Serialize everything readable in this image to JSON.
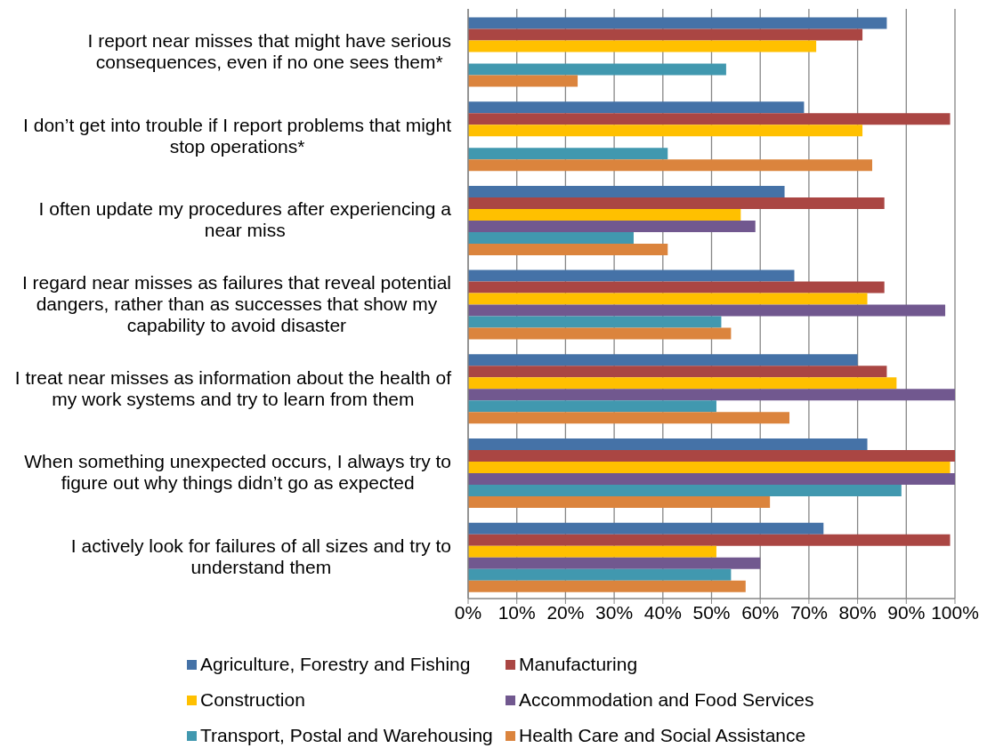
{
  "chart_data": {
    "type": "bar",
    "orientation": "horizontal",
    "categories": [
      "I report near misses that might have serious consequences, even if no one sees them*",
      "I don’t get into trouble if I report problems that might stop operations*",
      "I often update my procedures after experiencing a near miss",
      "I regard near misses as failures that reveal potential dangers, rather than as successes that show my capability to avoid disaster",
      "I treat near misses as information about the health of my work systems and try to learn from them",
      "When something unexpected occurs, I always try to figure out why things didn’t go as expected",
      "I actively look for failures of all sizes and try to understand them"
    ],
    "series": [
      {
        "name": "Agriculture, Forestry and Fishing",
        "color": "#4572a7",
        "values": [
          86,
          69,
          65,
          67,
          80,
          82,
          73
        ]
      },
      {
        "name": "Manufacturing",
        "color": "#aa4643",
        "values": [
          81,
          99,
          85.5,
          85.5,
          86,
          100,
          99
        ]
      },
      {
        "name": "Construction",
        "color": "#ffc000",
        "values": [
          71.5,
          81,
          56,
          82,
          88,
          99,
          51
        ]
      },
      {
        "name": "Accommodation and Food Services",
        "color": "#71588f",
        "values": [
          null,
          null,
          59,
          98,
          100,
          100,
          60
        ]
      },
      {
        "name": "Transport, Postal and Warehousing",
        "color": "#4198af",
        "values": [
          53,
          41,
          34,
          52,
          51,
          89,
          54
        ]
      },
      {
        "name": "Health Care and Social Assistance",
        "color": "#db843d",
        "values": [
          22.5,
          83,
          41,
          54,
          66,
          62,
          57
        ]
      }
    ],
    "xlim": [
      0,
      100
    ],
    "xticks": [
      {
        "value": 0,
        "label": "0%"
      },
      {
        "value": 10,
        "label": "10%"
      },
      {
        "value": 20,
        "label": "20%"
      },
      {
        "value": 30,
        "label": "30%"
      },
      {
        "value": 40,
        "label": "40%"
      },
      {
        "value": 50,
        "label": "50%"
      },
      {
        "value": 60,
        "label": "60%"
      },
      {
        "value": 70,
        "label": "70%"
      },
      {
        "value": 80,
        "label": "80%"
      },
      {
        "value": 90,
        "label": "90%"
      },
      {
        "value": 100,
        "label": "100%"
      }
    ],
    "grid": "x",
    "legend": "bottom"
  }
}
